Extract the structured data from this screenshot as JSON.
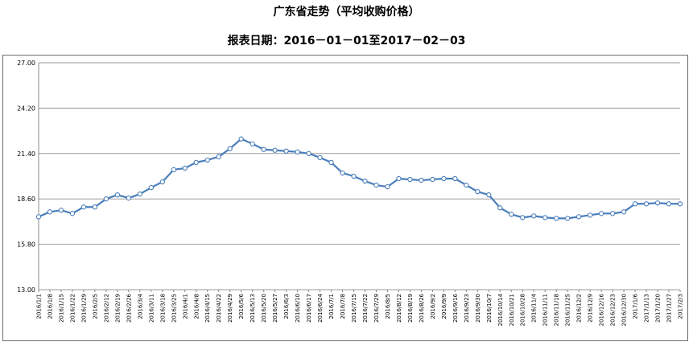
{
  "chart_data": {
    "type": "line",
    "title": "广东省走势（平均收购价格）",
    "subtitle": "报表日期：2016－01－01至2017－02－03",
    "xlabel": "",
    "ylabel": "",
    "ylim": [
      13.0,
      27.0
    ],
    "yticks": [
      "13.00",
      "15.80",
      "18.60",
      "21.40",
      "24.20",
      "27.00"
    ],
    "grid": true,
    "legend": "none",
    "line_color": "#4a7ebb",
    "marker_color": "#4a7ebb",
    "x": [
      "2016/1/1",
      "2016/1/8",
      "2016/1/15",
      "2016/1/22",
      "2016/1/29",
      "2016/2/5",
      "2016/2/12",
      "2016/2/19",
      "2016/2/26",
      "2016/3/4",
      "2016/3/11",
      "2016/3/18",
      "2016/3/25",
      "2016/4/1",
      "2016/4/8",
      "2016/4/15",
      "2016/4/22",
      "2016/4/29",
      "2016/5/6",
      "2016/5/13",
      "2016/5/20",
      "2016/5/27",
      "2016/6/3",
      "2016/6/10",
      "2016/6/17",
      "2016/6/24",
      "2016/7/1",
      "2016/7/8",
      "2016/7/15",
      "2016/7/22",
      "2016/7/29",
      "2016/8/5",
      "2016/8/12",
      "2016/8/19",
      "2016/8/26",
      "2016/9/2",
      "2016/9/9",
      "2016/9/16",
      "2016/9/23",
      "2016/9/30",
      "2016/10/7",
      "2016/10/14",
      "2016/10/21",
      "2016/10/28",
      "2016/11/4",
      "2016/11/11",
      "2016/11/18",
      "2016/11/25",
      "2016/12/2",
      "2016/12/9",
      "2016/12/16",
      "2016/12/23",
      "2016/12/30",
      "2017/1/6",
      "2017/1/13",
      "2017/1/20",
      "2017/1/27",
      "2017/2/3"
    ],
    "x_tick_labels": [
      "2016/1/1",
      "2016/1/8",
      "2016/1/15",
      "2016/1/22",
      "2016/1/29",
      "2016/2/5",
      "2016/2/12",
      "2016/2/19",
      "2016/2/26",
      "2016/3/4",
      "2016/3/11",
      "2016/3/18",
      "2016/3/25",
      "2016/4/1",
      "2016/4/8",
      "2016/4/15",
      "2016/4/22",
      "2016/4/29",
      "2016/5/6",
      "2016/5/13",
      "2016/5/20",
      "2016/5/27",
      "2016/6/3",
      "2016/6/10",
      "2016/6/17",
      "2016/6/24",
      "2016/7/1",
      "2016/7/8",
      "2016/7/15",
      "2016/7/22",
      "2016/7/29",
      "2016/8/5",
      "2016/8/12",
      "2016/8/19",
      "2016/8/26",
      "2016/9/2",
      "2016/9/9",
      "2016/9/16",
      "2016/9/23",
      "2016/9/30",
      "2016/10/7",
      "2016/10/14",
      "2016/10/21",
      "2016/10/28",
      "2016/11/4",
      "2016/11/11",
      "2016/11/18",
      "2016/11/25",
      "2016/12/2",
      "2016/12/9",
      "2016/12/16",
      "2016/12/23",
      "2016/12/30",
      "2017/1/6",
      "2017/1/13",
      "2017/1/20",
      "2017/1/27",
      "2017/2/3"
    ],
    "values": [
      17.5,
      17.8,
      17.9,
      17.7,
      18.1,
      18.1,
      18.6,
      18.85,
      18.65,
      18.9,
      19.3,
      19.65,
      20.4,
      20.5,
      20.85,
      21.0,
      21.2,
      21.7,
      22.3,
      22.0,
      21.65,
      21.6,
      21.55,
      21.5,
      21.4,
      21.15,
      20.85,
      20.2,
      20.0,
      19.7,
      19.45,
      19.35,
      19.85,
      19.8,
      19.75,
      19.8,
      19.85,
      19.85,
      19.45,
      19.05,
      18.85,
      18.05,
      17.65,
      17.45,
      17.55,
      17.45,
      17.4,
      17.4,
      17.5,
      17.6,
      17.7,
      17.7,
      17.8,
      18.3,
      18.3,
      18.35,
      18.3,
      18.3
    ]
  }
}
